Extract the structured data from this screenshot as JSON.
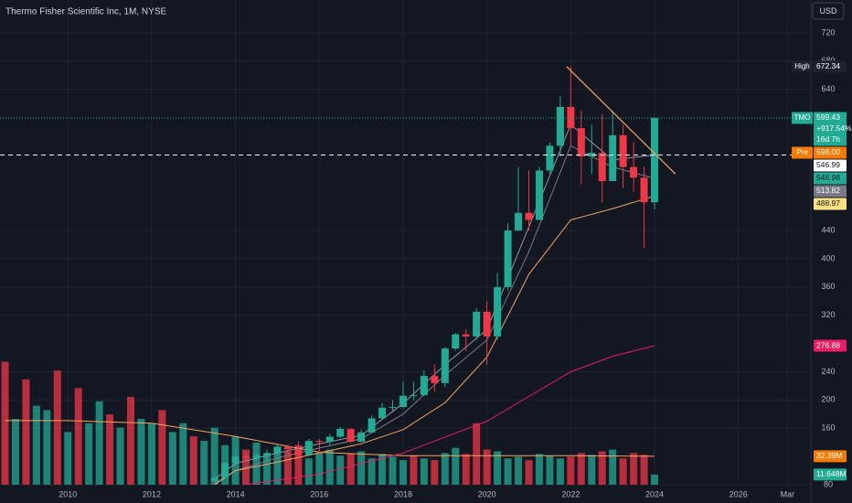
{
  "chart_data": {
    "type": "candlestick",
    "title": "Thermo Fisher Scientific Inc, 1M, NYSE",
    "currency": "USD",
    "up_color": "#22ab94",
    "down_color": "#f23645",
    "xlim": [
      2008.38,
      2027.73
    ],
    "xticks": [
      2010,
      2012,
      2014,
      2016,
      2018,
      2020,
      2022,
      2024,
      2026,
      {
        "value": 2027.17,
        "label": "Mar"
      }
    ],
    "ylim": [
      80,
      766.5
    ],
    "yticks": [
      80,
      160,
      200,
      240,
      320,
      360,
      400,
      440,
      640,
      680,
      720
    ],
    "grid": true,
    "x": [
      2013.5,
      2013.75,
      2014,
      2014.25,
      2014.5,
      2014.75,
      2015,
      2015.25,
      2015.5,
      2015.75,
      2016,
      2016.25,
      2016.5,
      2016.75,
      2017,
      2017.25,
      2017.5,
      2017.75,
      2018,
      2018.25,
      2018.5,
      2018.75,
      2019,
      2019.25,
      2019.5,
      2019.75,
      2020,
      2020.25,
      2020.5,
      2020.75,
      2021,
      2021.25,
      2021.5,
      2021.75,
      2022,
      2022.25,
      2022.5,
      2022.75,
      2023,
      2023.25,
      2023.5,
      2023.75,
      2024
    ],
    "ohlc": [
      [
        85,
        92,
        83,
        90
      ],
      [
        90,
        112,
        89,
        111
      ],
      [
        111,
        125,
        108,
        120
      ],
      [
        120,
        126,
        112,
        118
      ],
      [
        118,
        125,
        114,
        122
      ],
      [
        122,
        130,
        113,
        125
      ],
      [
        125,
        138,
        121,
        134
      ],
      [
        134,
        137,
        124,
        130
      ],
      [
        130,
        141,
        118,
        122
      ],
      [
        122,
        145,
        120,
        142
      ],
      [
        142,
        145,
        122,
        141
      ],
      [
        141,
        152,
        135,
        148
      ],
      [
        148,
        162,
        146,
        159
      ],
      [
        159,
        160,
        139,
        141
      ],
      [
        141,
        158,
        140,
        154
      ],
      [
        154,
        178,
        153,
        174
      ],
      [
        174,
        196,
        172,
        189
      ],
      [
        189,
        200,
        184,
        190
      ],
      [
        190,
        226,
        188,
        206
      ],
      [
        206,
        226,
        200,
        207
      ],
      [
        207,
        242,
        206,
        234
      ],
      [
        234,
        250,
        212,
        224
      ],
      [
        224,
        275,
        218,
        273
      ],
      [
        273,
        295,
        270,
        293
      ],
      [
        293,
        300,
        270,
        290
      ],
      [
        290,
        330,
        285,
        325
      ],
      [
        325,
        340,
        250,
        290
      ],
      [
        290,
        380,
        285,
        360
      ],
      [
        360,
        450,
        355,
        440
      ],
      [
        440,
        530,
        440,
        465
      ],
      [
        465,
        525,
        440,
        455
      ],
      [
        455,
        530,
        455,
        525
      ],
      [
        525,
        565,
        520,
        560
      ],
      [
        560,
        630,
        545,
        615
      ],
      [
        615,
        672.34,
        560,
        585
      ],
      [
        585,
        610,
        505,
        545
      ],
      [
        545,
        590,
        520,
        550
      ],
      [
        550,
        605,
        480,
        510
      ],
      [
        510,
        610,
        510,
        575
      ],
      [
        575,
        590,
        500,
        530
      ],
      [
        530,
        565,
        495,
        515
      ],
      [
        515,
        530,
        415,
        480
      ],
      [
        480,
        600,
        470,
        599.43
      ]
    ],
    "lines": [
      {
        "color": "#9598a1",
        "x": [
          2013.5,
          2014,
          2015,
          2016,
          2017,
          2018,
          2019,
          2020,
          2021,
          2022,
          2023,
          2024
        ],
        "values": [
          88,
          110,
          125,
          138,
          150,
          195,
          250,
          300,
          445,
          590,
          540,
          546.99
        ]
      },
      {
        "color": "#787b86",
        "x": [
          2013.5,
          2014,
          2015,
          2016,
          2017,
          2018,
          2019,
          2020,
          2021,
          2022,
          2023,
          2024
        ],
        "values": [
          82,
          100,
          118,
          132,
          145,
          180,
          235,
          285,
          410,
          560,
          530,
          513.82
        ]
      },
      {
        "color": "#f7a35c",
        "x": [
          2013.5,
          2014,
          2015,
          2016,
          2017,
          2018,
          2019,
          2020,
          2021,
          2022,
          2023,
          2024
        ],
        "values": [
          80,
          100,
          112,
          125,
          138,
          158,
          196,
          261,
          378,
          455,
          471,
          488.97
        ]
      },
      {
        "color": "#e91e63",
        "x": [
          2014,
          2016,
          2018,
          2020,
          2021,
          2022,
          2023,
          2024
        ],
        "values": [
          78,
          95,
          125,
          170,
          205,
          240,
          262,
          276.88
        ]
      }
    ],
    "trendline": {
      "color": "#f7a35c",
      "x": [
        2021.9,
        2024.5
      ],
      "values": [
        672.34,
        520
      ]
    },
    "volume": {
      "ylim": [
        0,
        552
      ],
      "ma_color": "#f7a35c",
      "x": [
        2008.5,
        2008.75,
        2009,
        2009.25,
        2009.5,
        2009.75,
        2010,
        2010.25,
        2010.5,
        2010.75,
        2011,
        2011.25,
        2011.5,
        2011.75,
        2012,
        2012.25,
        2012.5,
        2012.75,
        2013,
        2013.25,
        2013.5,
        2013.75,
        2014,
        2014.25,
        2014.5,
        2014.75,
        2015,
        2015.25,
        2015.5,
        2015.75,
        2016,
        2016.25,
        2016.5,
        2016.75,
        2017,
        2017.25,
        2017.5,
        2017.75,
        2018,
        2018.25,
        2018.5,
        2018.75,
        2019,
        2019.25,
        2019.5,
        2019.75,
        2020,
        2020.25,
        2020.5,
        2020.75,
        2021,
        2021.25,
        2021.5,
        2021.75,
        2022,
        2022.25,
        2022.5,
        2022.75,
        2023,
        2023.25,
        2023.5,
        2023.75,
        2024
      ],
      "values": [
        140,
        75,
        120,
        90,
        85,
        130,
        60,
        110,
        70,
        95,
        80,
        65,
        100,
        75,
        70,
        85,
        60,
        70,
        55,
        50,
        65,
        45,
        55,
        40,
        48,
        35,
        42,
        38,
        45,
        30,
        36,
        40,
        33,
        35,
        38,
        30,
        35,
        32,
        28,
        33,
        30,
        28,
        36,
        42,
        35,
        70,
        40,
        38,
        30,
        32,
        28,
        35,
        33,
        30,
        32,
        36,
        34,
        38,
        40,
        30,
        36,
        34,
        11.648
      ],
      "colors": [
        "#f23645",
        "#22ab94",
        "#f23645",
        "#22ab94",
        "#22ab94",
        "#f23645",
        "#22ab94",
        "#f23645",
        "#22ab94",
        "#22ab94",
        "#f23645",
        "#22ab94",
        "#f23645",
        "#22ab94",
        "#22ab94",
        "#f23645",
        "#22ab94",
        "#22ab94",
        "#f23645",
        "#22ab94",
        "#22ab94",
        "#22ab94",
        "#22ab94",
        "#f23645",
        "#22ab94",
        "#22ab94",
        "#22ab94",
        "#f23645",
        "#f23645",
        "#22ab94",
        "#22ab94",
        "#22ab94",
        "#22ab94",
        "#f23645",
        "#22ab94",
        "#22ab94",
        "#22ab94",
        "#22ab94",
        "#22ab94",
        "#f23645",
        "#22ab94",
        "#f23645",
        "#22ab94",
        "#22ab94",
        "#f23645",
        "#f23645",
        "#f23645",
        "#22ab94",
        "#22ab94",
        "#22ab94",
        "#f23645",
        "#22ab94",
        "#22ab94",
        "#22ab94",
        "#f23645",
        "#f23645",
        "#22ab94",
        "#f23645",
        "#22ab94",
        "#f23645",
        "#f23645",
        "#f23645",
        "#22ab94"
      ],
      "ma_x": [
        2008.5,
        2010,
        2012,
        2014,
        2016,
        2018,
        2020,
        2022,
        2024
      ],
      "ma_values": [
        73,
        73,
        70,
        55,
        37,
        33,
        33,
        33,
        32.39
      ]
    },
    "badges": [
      {
        "name": "High",
        "value": 672.34,
        "color": "#1e222d",
        "text_color": "#ffffff"
      },
      {
        "name": "TMO",
        "value": 599.43,
        "change": "+917.54%",
        "countdown": "16d 7h",
        "color": "#22ab94",
        "text_color": "#ffffff",
        "line": "dotted"
      },
      {
        "name": "Pre",
        "value": 598,
        "label": "598.00",
        "color": "#f57c00",
        "text_color": "#ffffff"
      },
      {
        "value": 546.99,
        "color": "#ffffff",
        "text_color": "#131722",
        "line": "dashed"
      },
      {
        "value": 546.98,
        "color": "#22ab94",
        "text_color": "#131722"
      },
      {
        "value": 513.82,
        "color": "#787b86",
        "text_color": "#ffffff"
      },
      {
        "value": 488.97,
        "color": "#ffe082",
        "text_color": "#131722"
      },
      {
        "value": 276.88,
        "color": "#e91e63",
        "text_color": "#ffffff"
      },
      {
        "value": 32.39,
        "label": "32.39M",
        "axis": "volume",
        "color": "#f57c00",
        "text_color": "#ffffff"
      },
      {
        "value": 11.648,
        "label": "11.648M",
        "axis": "volume",
        "color": "#22ab94",
        "text_color": "#ffffff"
      }
    ]
  }
}
